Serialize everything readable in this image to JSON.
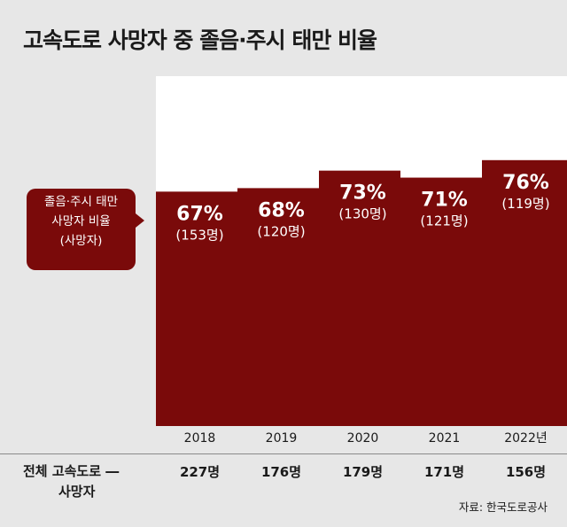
{
  "title": "고속도로 사망자 중 졸음·주시 태만 비율",
  "callout": {
    "line1": "졸음·주시 태만",
    "line2": "사망자 비율",
    "line3": "(사망자)"
  },
  "total_label": {
    "line1": "전체 고속도로 ―",
    "line2": "사망자"
  },
  "source": "자료: 한국도로공사",
  "colors": {
    "bar": "#7a0a0a",
    "bar_bg": "#ffffff",
    "page_bg": "#e7e7e7"
  },
  "chart_data": {
    "type": "bar",
    "title": "고속도로 사망자 중 졸음·주시 태만 비율",
    "categories": [
      "2018",
      "2019",
      "2020",
      "2021",
      "2022년"
    ],
    "ylim": [
      0,
      100
    ],
    "series": [
      {
        "values": [
          67,
          68,
          73,
          71,
          76
        ]
      }
    ],
    "percent_labels": [
      "67%",
      "68%",
      "73%",
      "71%",
      "76%"
    ],
    "count_labels": [
      "(153명)",
      "(120명)",
      "(130명)",
      "(121명)",
      "(119명)"
    ],
    "total_labels": [
      "227명",
      "176명",
      "179명",
      "171명",
      "156명"
    ]
  }
}
